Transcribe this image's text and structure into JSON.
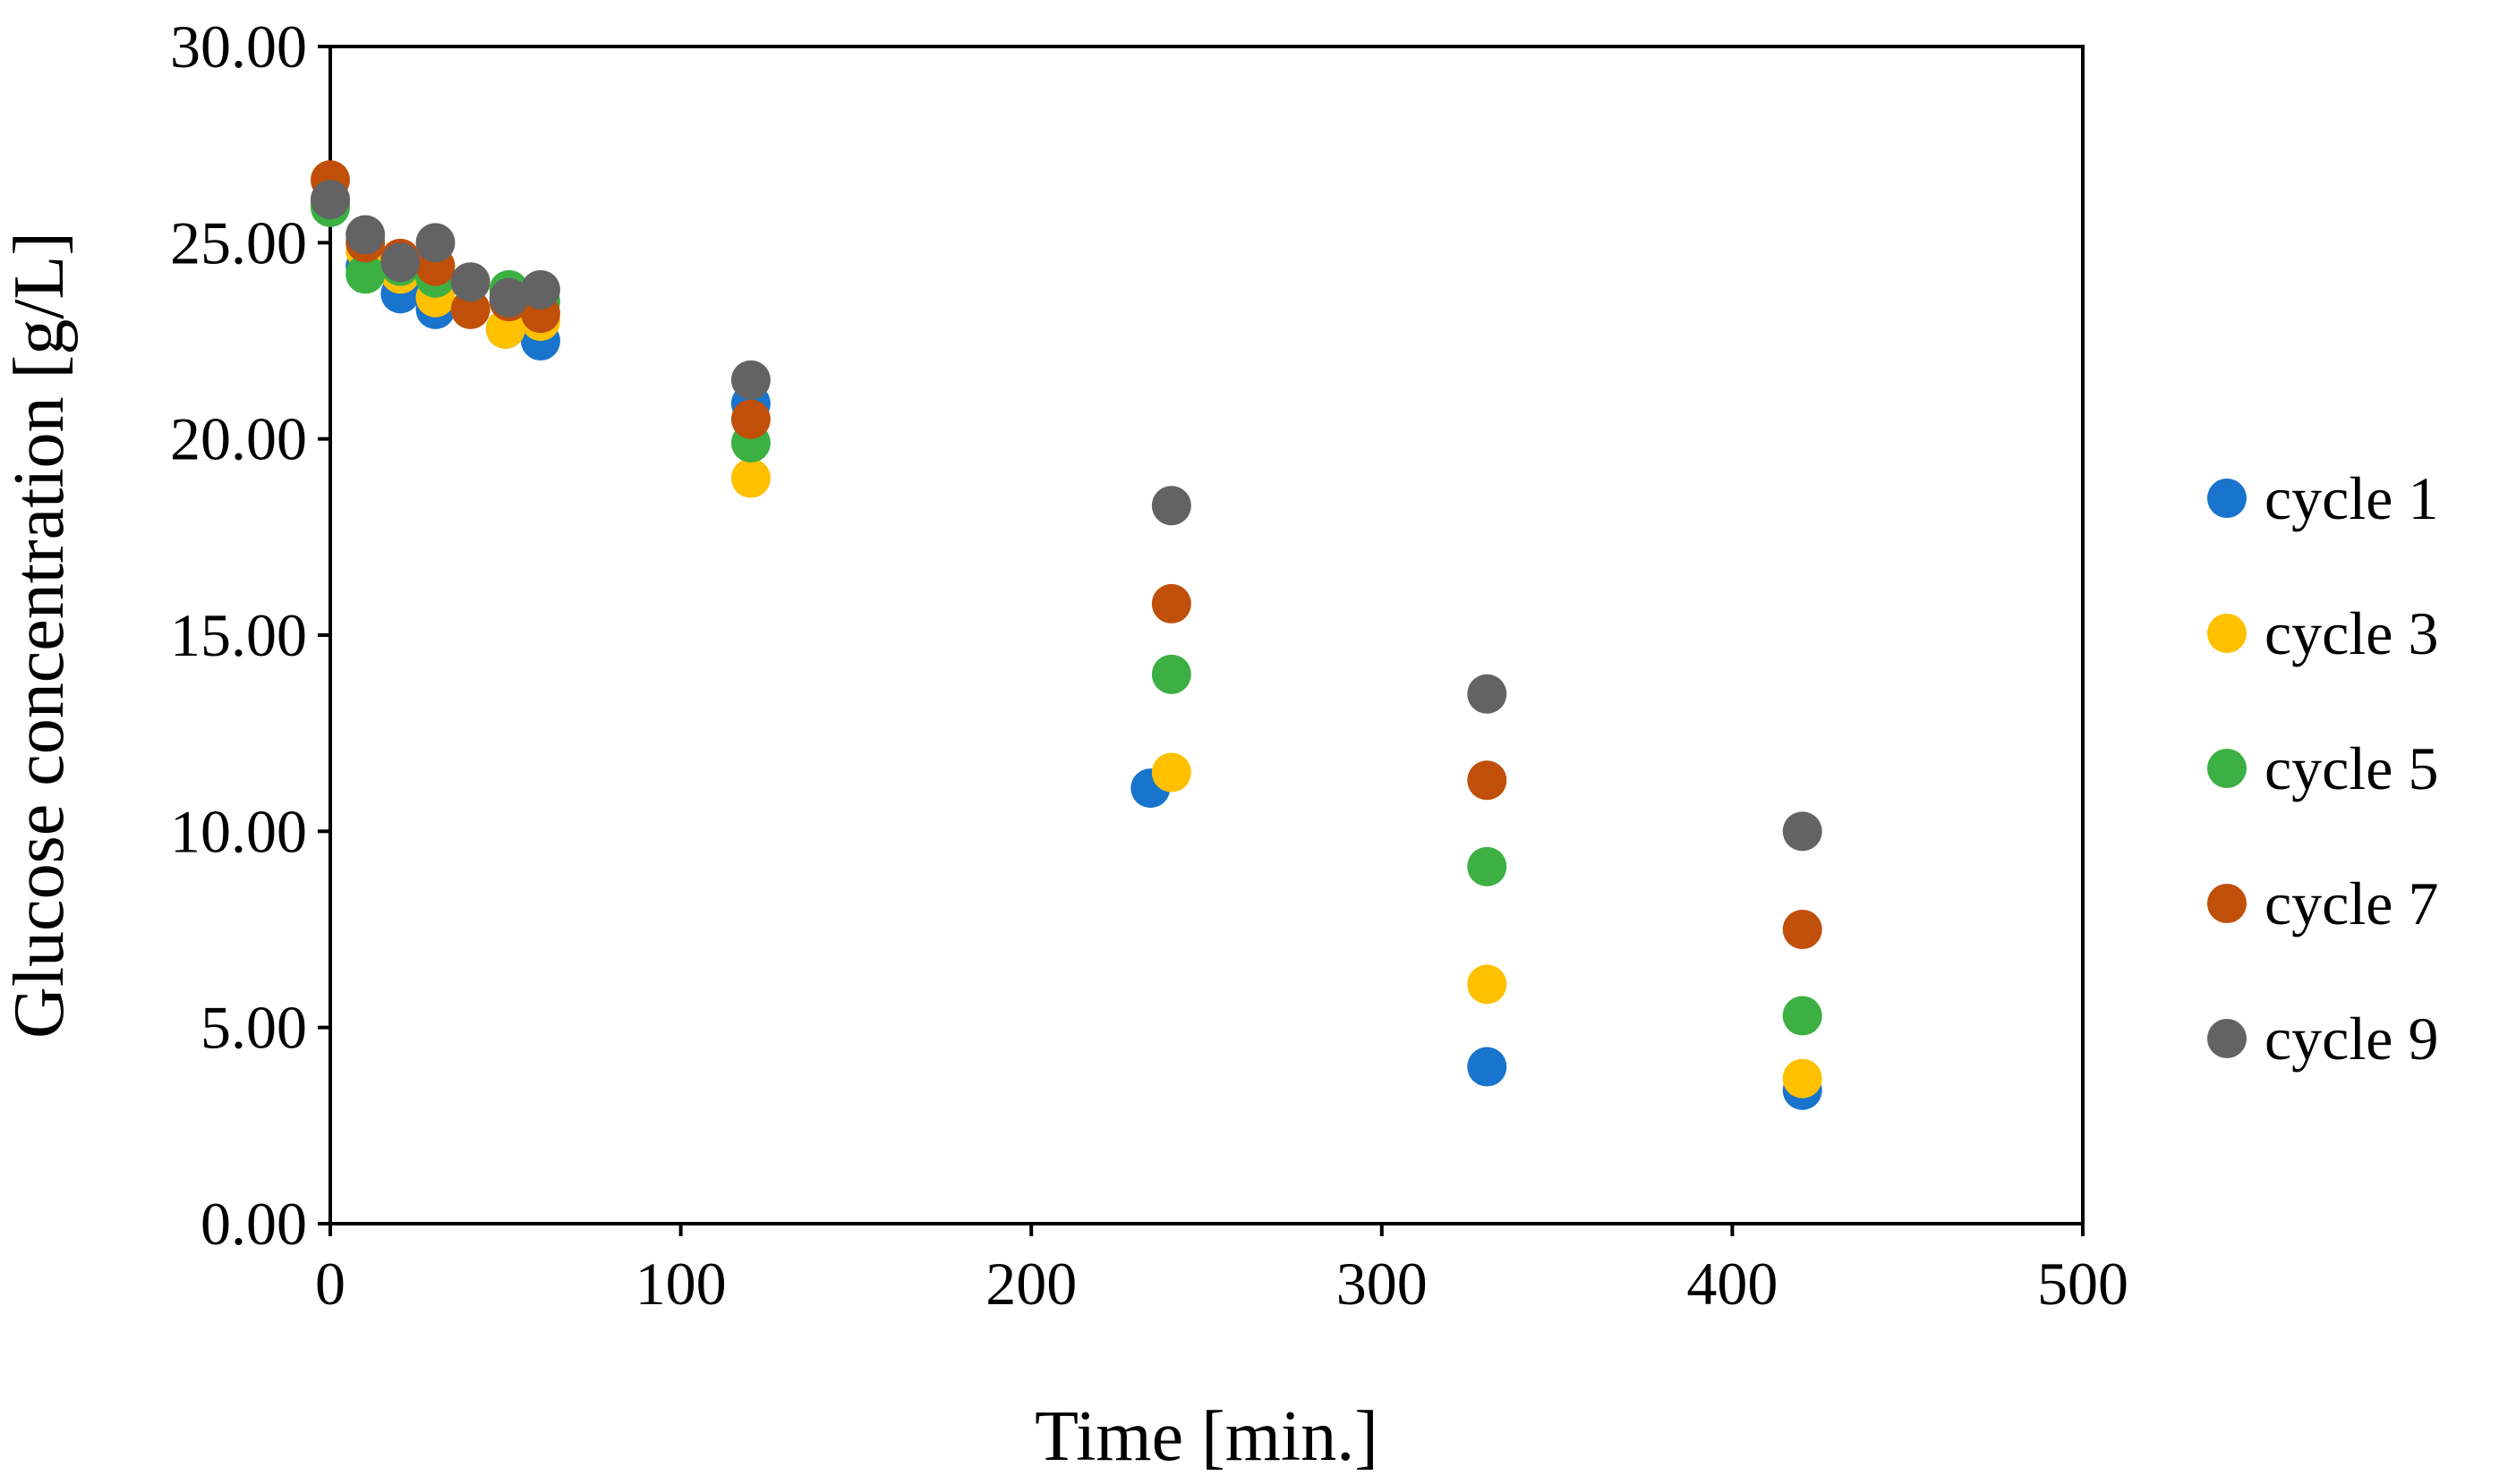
{
  "chart_data": {
    "type": "scatter",
    "title": "",
    "xlabel": "Time [min.]",
    "ylabel": "Glucose concentration [g/L]",
    "xlim": [
      0,
      500
    ],
    "ylim": [
      0,
      30
    ],
    "x_ticks": [
      0,
      100,
      200,
      300,
      400,
      500
    ],
    "x_tick_labels": [
      "0",
      "100",
      "200",
      "300",
      "400",
      "500"
    ],
    "y_ticks": [
      0,
      5,
      10,
      15,
      20,
      25,
      30
    ],
    "y_tick_labels": [
      "0.00",
      "5.00",
      "10.00",
      "15.00",
      "20.00",
      "25.00",
      "30.00"
    ],
    "grid": false,
    "legend_position": "right",
    "series": [
      {
        "name": "cycle 1",
        "color": "#1874CD",
        "points": [
          [
            0,
            26.0
          ],
          [
            10,
            24.4
          ],
          [
            20,
            23.7
          ],
          [
            30,
            23.3
          ],
          [
            50,
            22.8
          ],
          [
            60,
            22.5
          ],
          [
            120,
            20.9
          ],
          [
            234,
            11.1
          ],
          [
            330,
            4.0
          ],
          [
            420,
            3.4
          ]
        ]
      },
      {
        "name": "cycle 3",
        "color": "#FFC000",
        "points": [
          [
            0,
            26.1
          ],
          [
            10,
            24.8
          ],
          [
            20,
            24.2
          ],
          [
            30,
            23.6
          ],
          [
            50,
            22.8
          ],
          [
            60,
            23.0
          ],
          [
            120,
            19.0
          ],
          [
            240,
            11.5
          ],
          [
            330,
            6.1
          ],
          [
            420,
            3.7
          ]
        ]
      },
      {
        "name": "cycle 5",
        "color": "#3CB043",
        "points": [
          [
            0,
            25.9
          ],
          [
            10,
            24.2
          ],
          [
            20,
            24.4
          ],
          [
            30,
            24.1
          ],
          [
            51,
            23.8
          ],
          [
            60,
            23.5
          ],
          [
            120,
            19.9
          ],
          [
            240,
            14.0
          ],
          [
            330,
            9.1
          ],
          [
            420,
            5.3
          ]
        ]
      },
      {
        "name": "cycle 7",
        "color": "#C04F0A",
        "points": [
          [
            0,
            26.6
          ],
          [
            10,
            25.0
          ],
          [
            20,
            24.6
          ],
          [
            30,
            24.4
          ],
          [
            40,
            23.3
          ],
          [
            51,
            23.5
          ],
          [
            60,
            23.2
          ],
          [
            120,
            20.5
          ],
          [
            240,
            15.8
          ],
          [
            330,
            11.3
          ],
          [
            420,
            7.5
          ]
        ]
      },
      {
        "name": "cycle 9",
        "color": "#636363",
        "points": [
          [
            0,
            26.1
          ],
          [
            10,
            25.2
          ],
          [
            20,
            24.5
          ],
          [
            30,
            25.0
          ],
          [
            40,
            24.0
          ],
          [
            51,
            23.6
          ],
          [
            60,
            23.8
          ],
          [
            120,
            21.5
          ],
          [
            240,
            18.3
          ],
          [
            330,
            13.5
          ],
          [
            420,
            10.0
          ]
        ]
      }
    ]
  }
}
